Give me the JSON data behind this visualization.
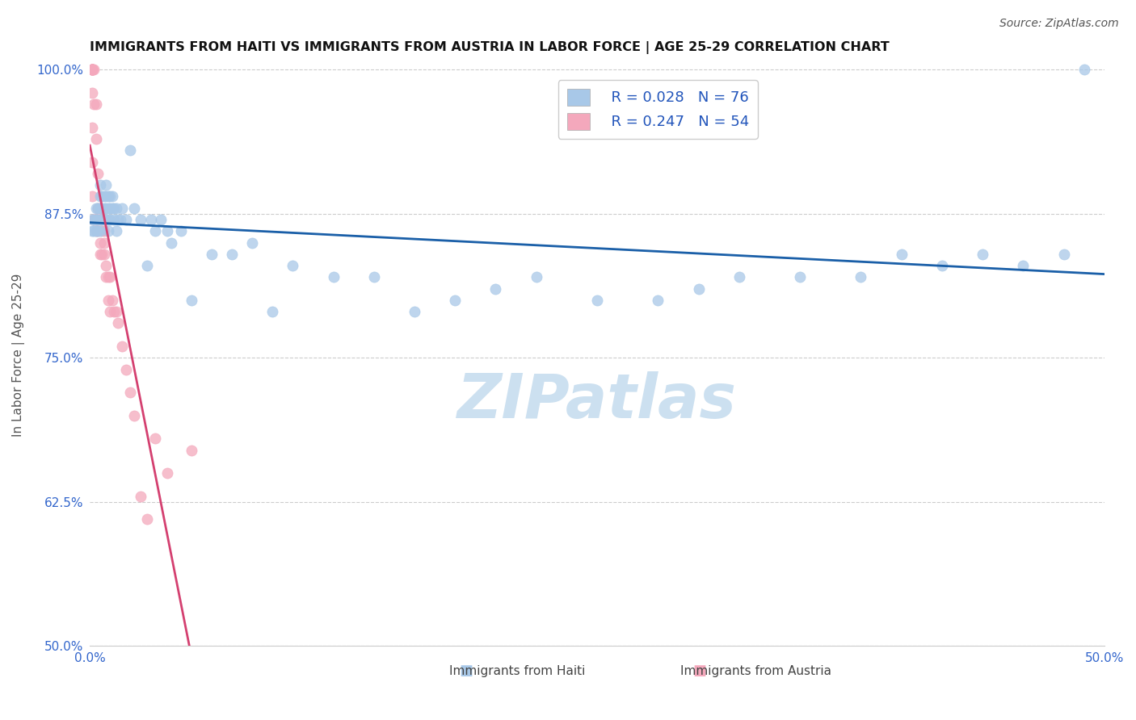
{
  "title": "IMMIGRANTS FROM HAITI VS IMMIGRANTS FROM AUSTRIA IN LABOR FORCE | AGE 25-29 CORRELATION CHART",
  "source": "Source: ZipAtlas.com",
  "ylabel": "In Labor Force | Age 25-29",
  "xmin": 0.0,
  "xmax": 0.5,
  "ymin": 0.5,
  "ymax": 1.005,
  "xtick_positions": [
    0.0,
    0.1,
    0.2,
    0.3,
    0.4,
    0.5
  ],
  "xticklabels": [
    "0.0%",
    "",
    "",
    "",
    "",
    "50.0%"
  ],
  "ytick_positions": [
    0.5,
    0.625,
    0.75,
    0.875,
    1.0
  ],
  "yticklabels": [
    "50.0%",
    "62.5%",
    "75.0%",
    "87.5%",
    "100.0%"
  ],
  "haiti_color": "#a8c8e8",
  "austria_color": "#f4a8bc",
  "haiti_line_color": "#1a5fa8",
  "austria_line_color": "#d44070",
  "legend_R_haiti": "R = 0.028",
  "legend_N_haiti": "N = 76",
  "legend_R_austria": "R = 0.247",
  "legend_N_austria": "N = 54",
  "haiti_x": [
    0.001,
    0.001,
    0.002,
    0.002,
    0.003,
    0.003,
    0.003,
    0.004,
    0.004,
    0.004,
    0.005,
    0.005,
    0.005,
    0.005,
    0.005,
    0.006,
    0.006,
    0.006,
    0.007,
    0.007,
    0.007,
    0.008,
    0.008,
    0.008,
    0.008,
    0.009,
    0.009,
    0.009,
    0.009,
    0.01,
    0.01,
    0.01,
    0.011,
    0.011,
    0.012,
    0.012,
    0.013,
    0.013,
    0.014,
    0.015,
    0.016,
    0.018,
    0.02,
    0.022,
    0.025,
    0.028,
    0.03,
    0.032,
    0.035,
    0.038,
    0.04,
    0.045,
    0.05,
    0.06,
    0.07,
    0.08,
    0.09,
    0.1,
    0.12,
    0.14,
    0.16,
    0.18,
    0.2,
    0.22,
    0.25,
    0.28,
    0.3,
    0.32,
    0.35,
    0.38,
    0.4,
    0.42,
    0.44,
    0.46,
    0.48,
    0.49
  ],
  "haiti_y": [
    0.87,
    0.86,
    0.87,
    0.86,
    0.88,
    0.87,
    0.86,
    0.88,
    0.87,
    0.86,
    0.9,
    0.89,
    0.88,
    0.87,
    0.86,
    0.89,
    0.88,
    0.87,
    0.89,
    0.88,
    0.87,
    0.9,
    0.89,
    0.88,
    0.87,
    0.89,
    0.88,
    0.87,
    0.86,
    0.89,
    0.88,
    0.87,
    0.89,
    0.88,
    0.88,
    0.87,
    0.88,
    0.86,
    0.87,
    0.87,
    0.88,
    0.87,
    0.93,
    0.88,
    0.87,
    0.83,
    0.87,
    0.86,
    0.87,
    0.86,
    0.85,
    0.86,
    0.8,
    0.84,
    0.84,
    0.85,
    0.79,
    0.83,
    0.82,
    0.82,
    0.79,
    0.8,
    0.81,
    0.82,
    0.8,
    0.8,
    0.81,
    0.82,
    0.82,
    0.82,
    0.84,
    0.83,
    0.84,
    0.83,
    0.84,
    1.0
  ],
  "austria_x": [
    0.001,
    0.001,
    0.001,
    0.001,
    0.001,
    0.001,
    0.001,
    0.001,
    0.001,
    0.001,
    0.001,
    0.001,
    0.001,
    0.002,
    0.002,
    0.002,
    0.002,
    0.003,
    0.003,
    0.003,
    0.003,
    0.004,
    0.004,
    0.004,
    0.004,
    0.005,
    0.005,
    0.005,
    0.005,
    0.006,
    0.006,
    0.006,
    0.007,
    0.007,
    0.007,
    0.008,
    0.008,
    0.009,
    0.009,
    0.01,
    0.01,
    0.011,
    0.012,
    0.013,
    0.014,
    0.016,
    0.018,
    0.02,
    0.022,
    0.025,
    0.028,
    0.032,
    0.038,
    0.05
  ],
  "austria_y": [
    1.0,
    1.0,
    1.0,
    1.0,
    1.0,
    1.0,
    1.0,
    1.0,
    1.0,
    0.98,
    0.95,
    0.92,
    0.89,
    1.0,
    0.97,
    0.87,
    0.87,
    0.97,
    0.94,
    0.87,
    0.86,
    0.91,
    0.88,
    0.87,
    0.86,
    0.88,
    0.87,
    0.85,
    0.84,
    0.87,
    0.86,
    0.84,
    0.86,
    0.85,
    0.84,
    0.83,
    0.82,
    0.82,
    0.8,
    0.82,
    0.79,
    0.8,
    0.79,
    0.79,
    0.78,
    0.76,
    0.74,
    0.72,
    0.7,
    0.63,
    0.61,
    0.68,
    0.65,
    0.67
  ],
  "background_color": "#ffffff",
  "grid_color": "#cccccc",
  "watermark_text": "ZIPatlas",
  "watermark_color": "#cce0f0"
}
